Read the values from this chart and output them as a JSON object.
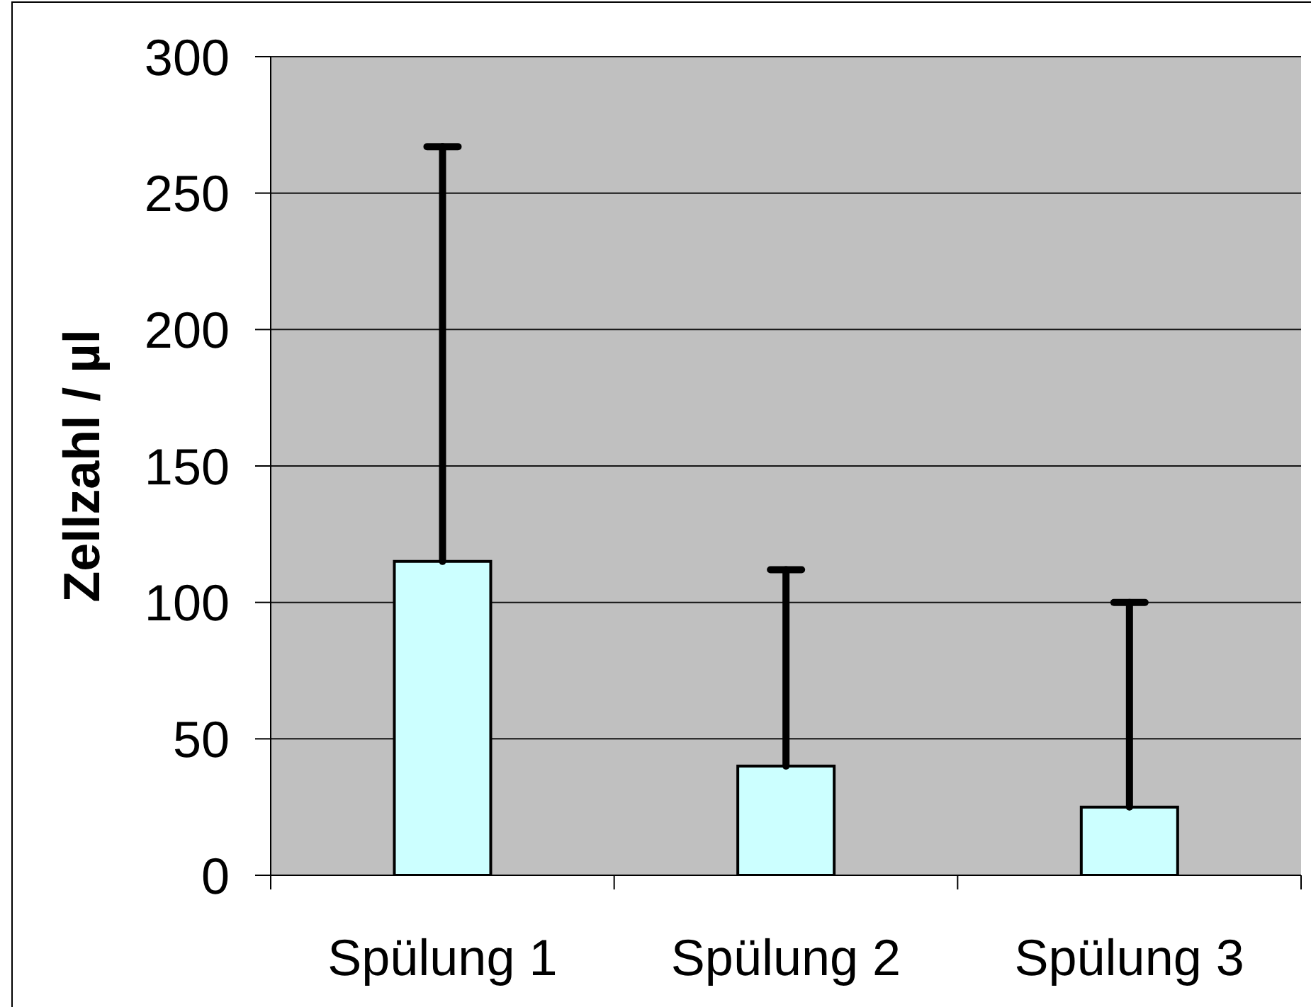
{
  "chart_data": {
    "type": "bar",
    "ylabel": "Zellzahl / µl",
    "categories": [
      "Spülung 1",
      "Spülung 2",
      "Spülung 3"
    ],
    "values": [
      115,
      40,
      25
    ],
    "errors": [
      [
        115,
        267
      ],
      [
        40,
        112
      ],
      [
        25,
        100
      ]
    ],
    "color": "#ccffff",
    "ylim": [
      0,
      300
    ],
    "yticks": [
      0,
      50,
      100,
      150,
      200,
      250,
      300
    ],
    "grid": "y"
  }
}
